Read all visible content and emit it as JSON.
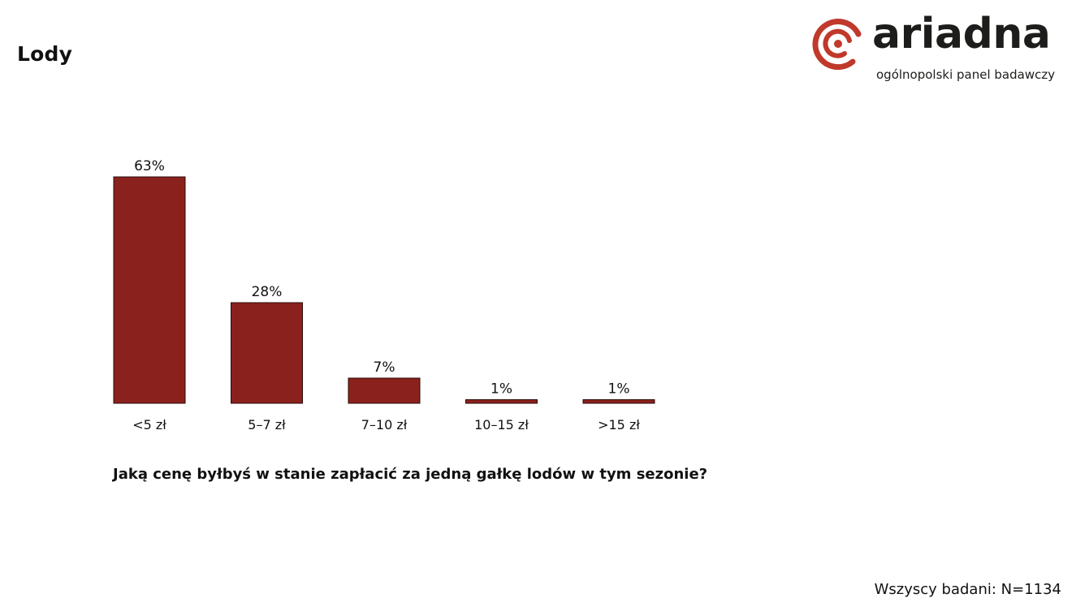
{
  "page": {
    "title": "Lody",
    "question": "Jaką cenę byłbyś w stanie zapłacić za jedną gałkę lodów w tym sezonie?",
    "base_note": "Wszyscy badani: N=1134"
  },
  "logo": {
    "wordmark": "ariadna",
    "tagline": "ogólnopolski panel badawczy",
    "colors": {
      "mark": "#c0392b",
      "text": "#1d1d1b"
    }
  },
  "chart_data": {
    "type": "bar",
    "categories": [
      "<5 zł",
      "5–7 zł",
      "7–10 zł",
      "10–15 zł",
      ">15 zł"
    ],
    "values": [
      63,
      28,
      7,
      1,
      1
    ],
    "data_labels": [
      "63%",
      "28%",
      "7%",
      "1%",
      "1%"
    ],
    "unit": "%",
    "ylim": [
      0,
      63
    ],
    "grid": false,
    "legend": "none",
    "bar_color": "#8b211c"
  }
}
